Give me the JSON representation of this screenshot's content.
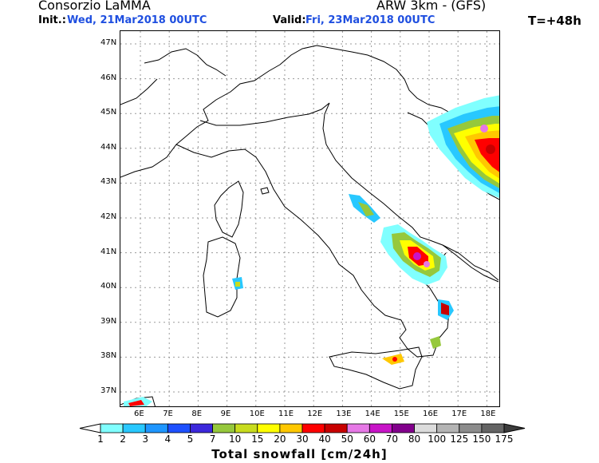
{
  "header": {
    "org": "Consorzio LaMMA",
    "model": "ARW 3km - (GFS)",
    "init_label": "Init.:",
    "init_value": "Wed, 21Mar2018 00UTC",
    "valid_label": "Valid:",
    "valid_value": "Fri, 23Mar2018 00UTC",
    "forecast_step": "T=+48h"
  },
  "axes": {
    "lat_labels": [
      "47N",
      "46N",
      "45N",
      "44N",
      "43N",
      "42N",
      "41N",
      "40N",
      "39N",
      "38N",
      "37N"
    ],
    "lon_labels": [
      "6E",
      "7E",
      "8E",
      "9E",
      "10E",
      "11E",
      "12E",
      "13E",
      "14E",
      "15E",
      "16E",
      "17E",
      "18E"
    ],
    "grid": true
  },
  "colorbar": {
    "title": "Total snowfall [cm/24h]",
    "levels": [
      "1",
      "2",
      "3",
      "4",
      "5",
      "7",
      "10",
      "15",
      "20",
      "30",
      "40",
      "50",
      "60",
      "70",
      "80",
      "100",
      "125",
      "150",
      "175"
    ],
    "colors": [
      "#80ffff",
      "#28c8ff",
      "#1e96ff",
      "#1e50ff",
      "#3c28dc",
      "#96c83c",
      "#c8dc1e",
      "#ffff00",
      "#ffc800",
      "#ff0000",
      "#c80000",
      "#e678e6",
      "#c814c8",
      "#82008c",
      "#dcdcdc",
      "#b4b4b4",
      "#8c8c8c",
      "#646464"
    ]
  }
}
